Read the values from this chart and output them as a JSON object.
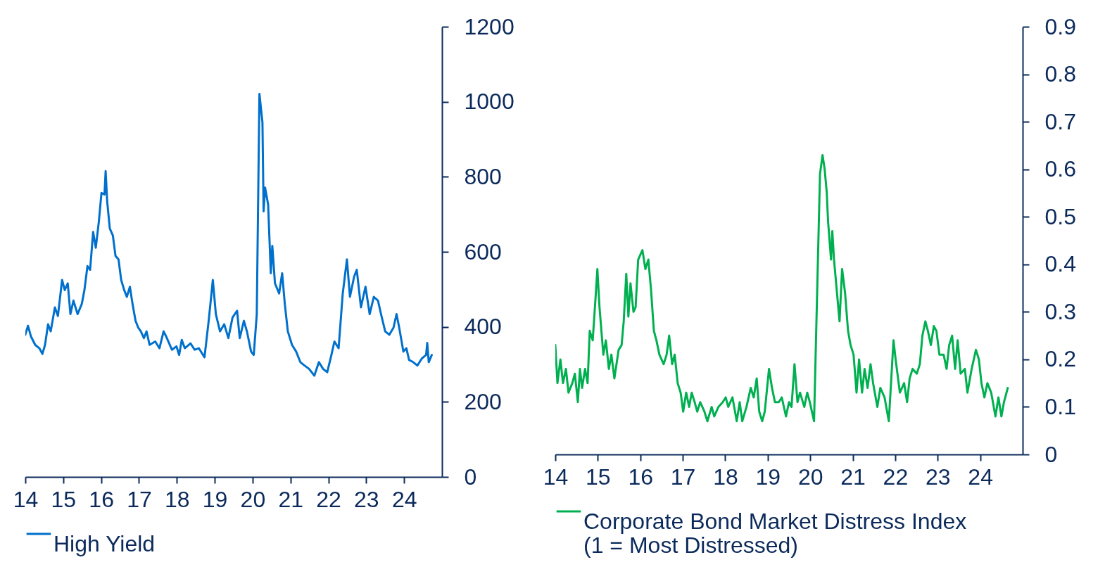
{
  "chart_data": [
    {
      "type": "line",
      "xlim": [
        14,
        25
      ],
      "xticks": [
        14,
        15,
        16,
        17,
        18,
        19,
        20,
        21,
        22,
        23,
        24
      ],
      "ylim": [
        0,
        1200
      ],
      "yticks": [
        0,
        200,
        400,
        600,
        800,
        1000,
        1200
      ],
      "legend": "bottom",
      "grid": false,
      "x": [
        14.0,
        14.07,
        14.15,
        14.26,
        14.37,
        14.45,
        14.52,
        14.6,
        14.67,
        14.78,
        14.86,
        14.97,
        15.04,
        15.12,
        15.19,
        15.27,
        15.38,
        15.49,
        15.56,
        15.64,
        15.71,
        15.79,
        15.86,
        15.94,
        16.01,
        16.09,
        16.12,
        16.16,
        16.23,
        16.31,
        16.38,
        16.46,
        16.53,
        16.61,
        16.68,
        16.76,
        16.83,
        16.91,
        16.98,
        17.05,
        17.13,
        17.2,
        17.28,
        17.43,
        17.54,
        17.65,
        17.72,
        17.87,
        17.99,
        18.06,
        18.13,
        18.21,
        18.36,
        18.47,
        18.58,
        18.73,
        18.84,
        18.95,
        19.03,
        19.14,
        19.25,
        19.36,
        19.47,
        19.59,
        19.66,
        19.77,
        19.85,
        19.96,
        20.03,
        20.11,
        20.18,
        20.26,
        20.29,
        20.33,
        20.41,
        20.48,
        20.52,
        20.59,
        20.7,
        20.78,
        20.85,
        20.93,
        21.04,
        21.15,
        21.26,
        21.37,
        21.49,
        21.63,
        21.75,
        21.86,
        21.97,
        22.08,
        22.16,
        22.27,
        22.38,
        22.49,
        22.57,
        22.68,
        22.75,
        22.86,
        22.98,
        23.09,
        23.2,
        23.31,
        23.39,
        23.5,
        23.61,
        23.72,
        23.8,
        23.87,
        23.98,
        24.06,
        24.13,
        24.24,
        24.35,
        24.47,
        24.58,
        24.61,
        24.65,
        24.73
      ],
      "series": [
        {
          "name": "High Yield",
          "color": "#0070cc",
          "values": [
            379,
            403,
            374,
            352,
            343,
            328,
            352,
            407,
            388,
            452,
            429,
            525,
            498,
            516,
            434,
            470,
            434,
            461,
            498,
            562,
            552,
            653,
            611,
            680,
            757,
            753,
            815,
            735,
            662,
            644,
            589,
            580,
            525,
            498,
            480,
            507,
            461,
            416,
            398,
            388,
            370,
            388,
            352,
            361,
            343,
            388,
            374,
            339,
            348,
            325,
            365,
            343,
            356,
            339,
            343,
            319,
            416,
            525,
            434,
            388,
            407,
            370,
            425,
            443,
            370,
            416,
            388,
            334,
            325,
            434,
            1021,
            945,
            708,
            771,
            726,
            543,
            616,
            516,
            489,
            543,
            461,
            388,
            352,
            334,
            306,
            297,
            288,
            270,
            306,
            288,
            279,
            325,
            361,
            343,
            489,
            580,
            480,
            534,
            552,
            452,
            507,
            434,
            480,
            470,
            434,
            388,
            379,
            398,
            434,
            398,
            334,
            343,
            312,
            306,
            297,
            316,
            325,
            357,
            306,
            325
          ]
        }
      ]
    },
    {
      "type": "line",
      "xlim": [
        14,
        25
      ],
      "xticks": [
        14,
        15,
        16,
        17,
        18,
        19,
        20,
        21,
        22,
        23,
        24
      ],
      "ylim": [
        0,
        0.9
      ],
      "yticks": [
        0,
        0.1,
        0.2,
        0.3,
        0.4,
        0.5,
        0.6,
        0.7,
        0.8,
        0.9
      ],
      "legend": "bottom",
      "grid": false,
      "x": [
        14.0,
        14.05,
        14.12,
        14.18,
        14.25,
        14.31,
        14.4,
        14.46,
        14.53,
        14.58,
        14.63,
        14.7,
        14.76,
        14.81,
        14.88,
        14.94,
        14.99,
        15.04,
        15.13,
        15.19,
        15.26,
        15.32,
        15.39,
        15.49,
        15.56,
        15.61,
        15.67,
        15.72,
        15.77,
        15.84,
        15.89,
        15.95,
        16.0,
        16.05,
        16.12,
        16.19,
        16.25,
        16.32,
        16.38,
        16.45,
        16.55,
        16.62,
        16.68,
        16.75,
        16.81,
        16.88,
        16.95,
        17.01,
        17.08,
        17.15,
        17.21,
        17.28,
        17.34,
        17.41,
        17.51,
        17.58,
        17.68,
        17.74,
        17.84,
        17.94,
        18.01,
        18.07,
        18.17,
        18.27,
        18.34,
        18.4,
        18.5,
        18.6,
        18.67,
        18.74,
        18.8,
        18.87,
        18.93,
        19.03,
        19.1,
        19.17,
        19.26,
        19.33,
        19.43,
        19.5,
        19.56,
        19.63,
        19.7,
        19.76,
        19.86,
        19.93,
        19.99,
        20.09,
        20.23,
        20.29,
        20.34,
        20.39,
        20.42,
        20.49,
        20.52,
        20.56,
        20.69,
        20.75,
        20.82,
        20.89,
        20.95,
        21.02,
        21.09,
        21.15,
        21.22,
        21.28,
        21.35,
        21.42,
        21.48,
        21.58,
        21.65,
        21.75,
        21.85,
        21.96,
        22.01,
        22.11,
        22.21,
        22.28,
        22.34,
        22.41,
        22.51,
        22.58,
        22.64,
        22.71,
        22.77,
        22.84,
        22.91,
        22.97,
        23.04,
        23.14,
        23.21,
        23.27,
        23.34,
        23.41,
        23.47,
        23.54,
        23.64,
        23.7,
        23.8,
        23.9,
        23.97,
        24.03,
        24.1,
        24.17,
        24.26,
        24.36,
        24.43,
        24.5,
        24.56,
        24.65
      ],
      "series": [
        {
          "name": "Corporate Bond Market Distress Index\n(1 = Most Distressed)",
          "color": "#00b050",
          "values": [
            0.23,
            0.15,
            0.2,
            0.15,
            0.18,
            0.13,
            0.15,
            0.17,
            0.11,
            0.18,
            0.14,
            0.18,
            0.15,
            0.26,
            0.24,
            0.32,
            0.39,
            0.31,
            0.21,
            0.24,
            0.18,
            0.21,
            0.16,
            0.22,
            0.23,
            0.28,
            0.38,
            0.29,
            0.36,
            0.3,
            0.31,
            0.41,
            0.42,
            0.43,
            0.39,
            0.41,
            0.35,
            0.26,
            0.24,
            0.21,
            0.19,
            0.21,
            0.25,
            0.19,
            0.21,
            0.15,
            0.13,
            0.09,
            0.13,
            0.1,
            0.13,
            0.11,
            0.09,
            0.11,
            0.09,
            0.07,
            0.1,
            0.08,
            0.1,
            0.11,
            0.12,
            0.1,
            0.12,
            0.07,
            0.11,
            0.07,
            0.1,
            0.14,
            0.12,
            0.16,
            0.09,
            0.07,
            0.09,
            0.18,
            0.14,
            0.11,
            0.11,
            0.12,
            0.08,
            0.11,
            0.1,
            0.19,
            0.11,
            0.13,
            0.1,
            0.13,
            0.11,
            0.07,
            0.59,
            0.63,
            0.6,
            0.55,
            0.49,
            0.41,
            0.47,
            0.41,
            0.28,
            0.39,
            0.34,
            0.26,
            0.23,
            0.21,
            0.13,
            0.2,
            0.13,
            0.18,
            0.14,
            0.19,
            0.15,
            0.1,
            0.14,
            0.12,
            0.07,
            0.24,
            0.2,
            0.13,
            0.15,
            0.11,
            0.16,
            0.18,
            0.17,
            0.19,
            0.25,
            0.28,
            0.26,
            0.23,
            0.27,
            0.26,
            0.21,
            0.21,
            0.18,
            0.23,
            0.25,
            0.18,
            0.24,
            0.17,
            0.18,
            0.13,
            0.18,
            0.22,
            0.2,
            0.15,
            0.12,
            0.15,
            0.13,
            0.08,
            0.12,
            0.08,
            0.11,
            0.14
          ]
        }
      ]
    }
  ]
}
